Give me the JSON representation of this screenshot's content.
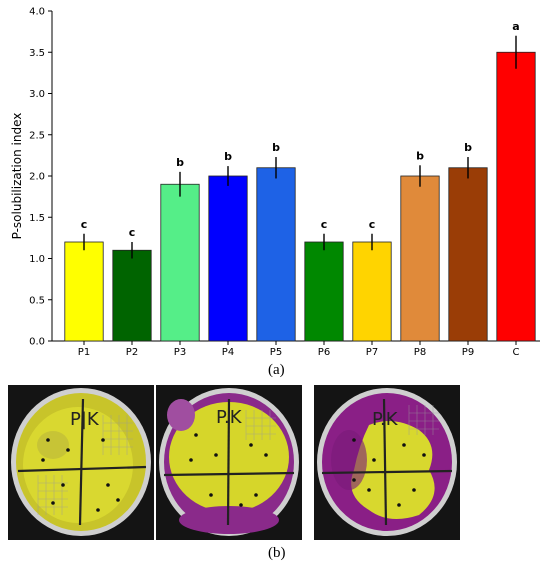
{
  "chart_data": {
    "type": "bar",
    "categories": [
      "P1",
      "P2",
      "P3",
      "P4",
      "P5",
      "P6",
      "P7",
      "P8",
      "P9",
      "C"
    ],
    "values": [
      1.2,
      1.1,
      1.9,
      2.0,
      2.1,
      1.2,
      1.2,
      2.0,
      2.1,
      3.5
    ],
    "errors": [
      0.1,
      0.1,
      0.15,
      0.12,
      0.13,
      0.1,
      0.1,
      0.13,
      0.13,
      0.2
    ],
    "significance": [
      "c",
      "c",
      "b",
      "b",
      "b",
      "c",
      "c",
      "b",
      "b",
      "a"
    ],
    "colors": [
      "#ffff00",
      "#006400",
      "#55ee88",
      "#0000ff",
      "#1e62e6",
      "#008800",
      "#ffd400",
      "#e08a3a",
      "#9a3d06",
      "#ff0000"
    ],
    "ylabel": "P-solubilization index",
    "ylim": [
      0,
      4.0
    ],
    "yticks": [
      "0.0",
      "0.5",
      "1.0",
      "1.5",
      "2.0",
      "2.5",
      "3.0",
      "3.5",
      "4.0"
    ],
    "ytick_values": [
      0,
      0.5,
      1.0,
      1.5,
      2.0,
      2.5,
      3.0,
      3.5,
      4.0
    ],
    "grid": false
  },
  "captions": {
    "panel_a": "(a)",
    "panel_b": "(b)"
  },
  "plates": [
    {
      "label": "P|K",
      "medium": "yellow"
    },
    {
      "label": "P.K",
      "medium": "yellow-purple"
    },
    {
      "label": "P.K",
      "medium": "purple-yellow"
    }
  ]
}
